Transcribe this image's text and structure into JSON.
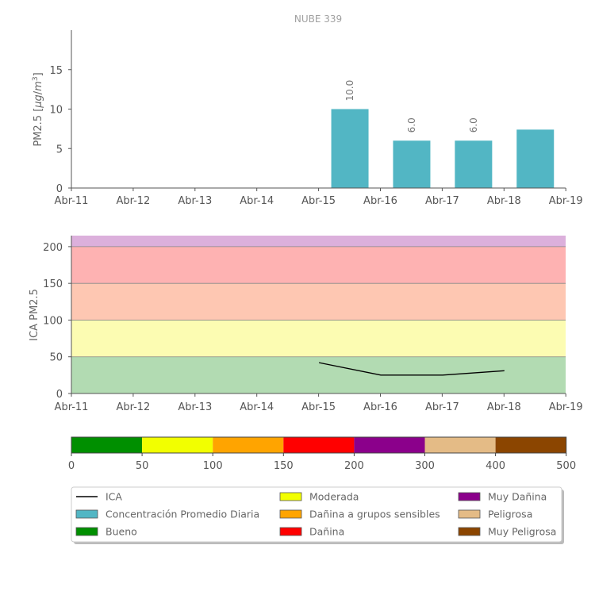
{
  "title": "NUBE 339",
  "chart_data": [
    {
      "type": "bar",
      "title": "NUBE 339",
      "xlabel": "",
      "ylabel": "PM2.5 [μg/m³]",
      "x_ticks": [
        "Abr-11",
        "Abr-12",
        "Abr-13",
        "Abr-14",
        "Abr-15",
        "Abr-16",
        "Abr-17",
        "Abr-18",
        "Abr-19"
      ],
      "categories": [
        "Abr-15",
        "Abr-16",
        "Abr-17",
        "Abr-18"
      ],
      "values": [
        10.0,
        6.0,
        6.0,
        7.4
      ],
      "labels": [
        "10.0",
        "6.0",
        "6.0",
        ""
      ],
      "yticks": [
        0,
        5,
        10,
        15
      ],
      "ylim": [
        0,
        20
      ],
      "color": "#52b6c4"
    },
    {
      "type": "line",
      "title": "",
      "ylabel": "ICA PM2.5",
      "x_ticks": [
        "Abr-11",
        "Abr-12",
        "Abr-13",
        "Abr-14",
        "Abr-15",
        "Abr-16",
        "Abr-17",
        "Abr-18",
        "Abr-19"
      ],
      "x": [
        "Abr-15",
        "Abr-16",
        "Abr-17",
        "Abr-18"
      ],
      "y": [
        42,
        25,
        25,
        31
      ],
      "yticks": [
        0,
        50,
        100,
        150,
        200
      ],
      "ylim": [
        0,
        215
      ],
      "bands": [
        {
          "from": 0,
          "to": 50,
          "color": "#b2dbb2"
        },
        {
          "from": 50,
          "to": 100,
          "color": "#fcfcb2"
        },
        {
          "from": 100,
          "to": 150,
          "color": "#fec7b2"
        },
        {
          "from": 150,
          "to": 200,
          "color": "#feb2b2"
        },
        {
          "from": 200,
          "to": 215,
          "color": "#dcb0dc"
        }
      ],
      "line_color": "#000000"
    },
    {
      "type": "colorbar",
      "ticks": [
        "0",
        "50",
        "100",
        "150",
        "200",
        "300",
        "400",
        "500"
      ],
      "colors": [
        "#008f00",
        "#f2ff00",
        "#ffa400",
        "#ff0000",
        "#8b008b",
        "#e4bb86",
        "#8b4500"
      ]
    }
  ],
  "legend": {
    "items": [
      {
        "label": "ICA",
        "kind": "line",
        "color": "#000000"
      },
      {
        "label": "Concentración Promedio Diaria",
        "kind": "box",
        "color": "#52b6c4"
      },
      {
        "label": "Bueno",
        "kind": "box",
        "color": "#008f00"
      },
      {
        "label": "Moderada",
        "kind": "box",
        "color": "#f2ff00"
      },
      {
        "label": "Dañina a grupos sensibles",
        "kind": "box",
        "color": "#ffa400"
      },
      {
        "label": "Dañina",
        "kind": "box",
        "color": "#ff0000"
      },
      {
        "label": "Muy Dañina",
        "kind": "box",
        "color": "#8b008b"
      },
      {
        "label": "Peligrosa",
        "kind": "box",
        "color": "#e4bb86"
      },
      {
        "label": "Muy Peligrosa",
        "kind": "box",
        "color": "#8b4500"
      }
    ]
  }
}
